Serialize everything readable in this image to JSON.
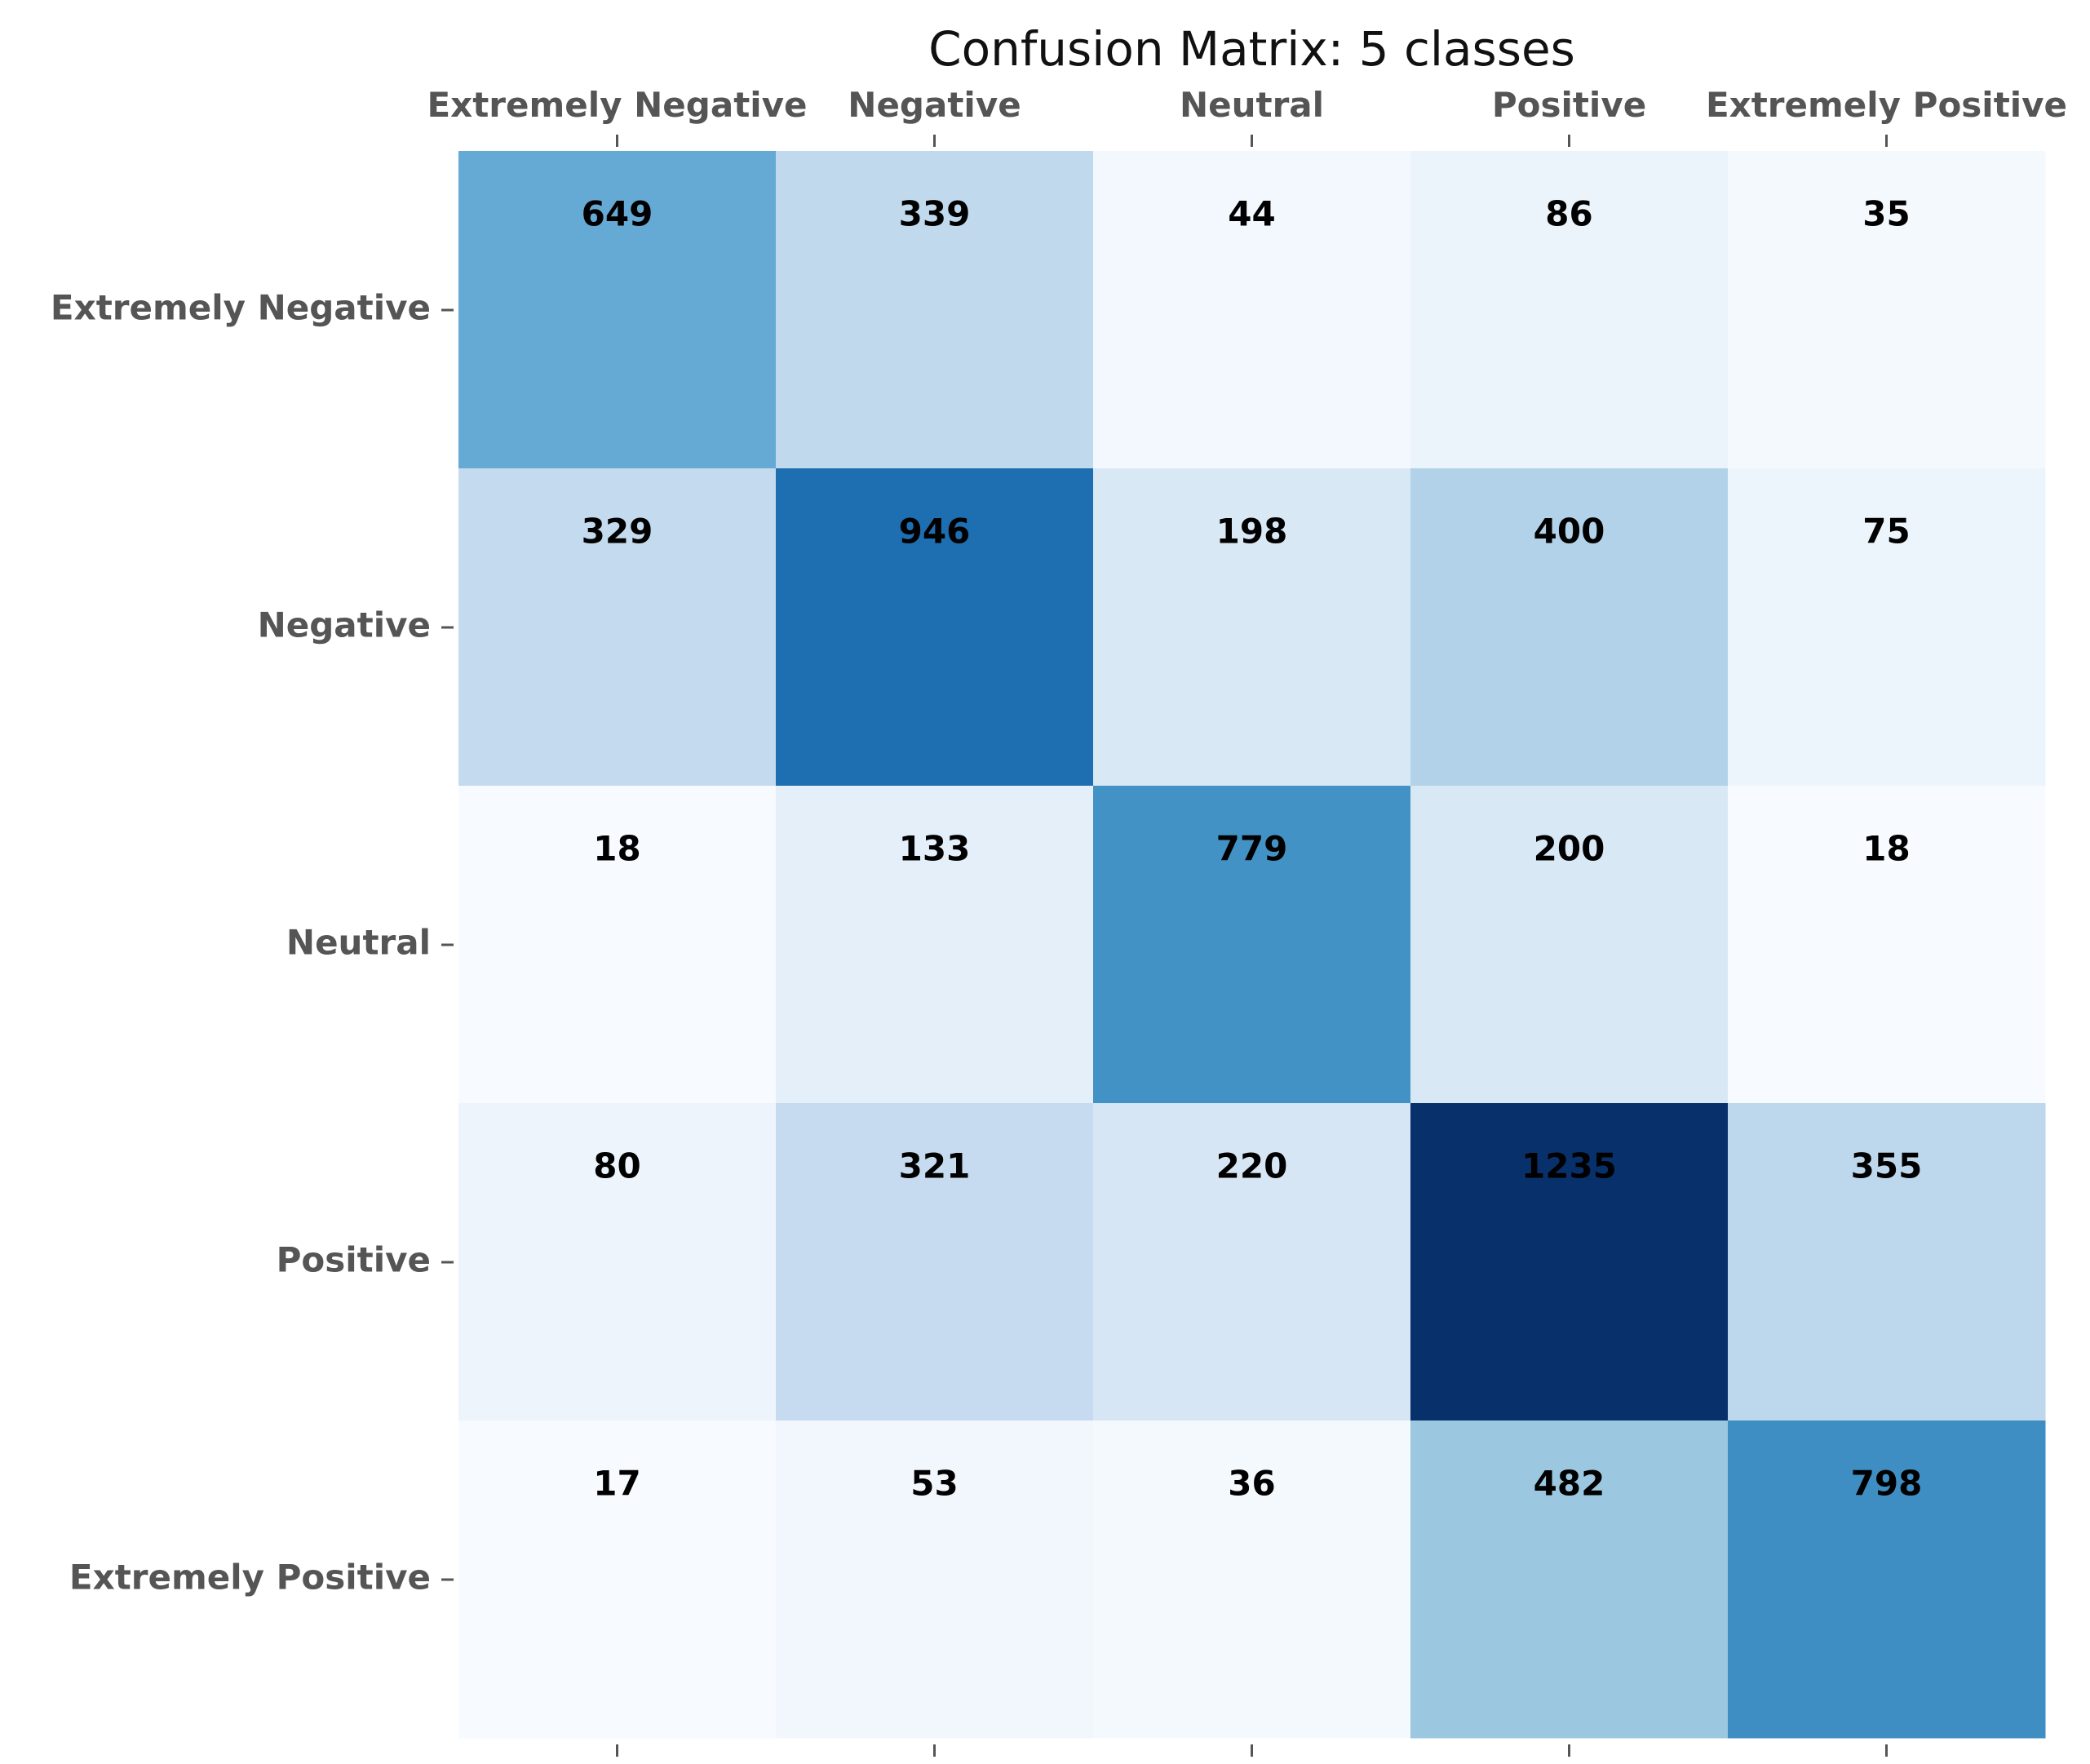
{
  "chart_data": {
    "type": "heatmap",
    "title": "Confusion Matrix: 5 classes",
    "xlabel": "",
    "ylabel": "",
    "x_categories": [
      "Extremely Negative",
      "Negative",
      "Neutral",
      "Positive",
      "Extremely Positive"
    ],
    "y_categories": [
      "Extremely Negative",
      "Negative",
      "Neutral",
      "Positive",
      "Extremely Positive"
    ],
    "values": [
      [
        649,
        339,
        44,
        86,
        35
      ],
      [
        329,
        946,
        198,
        400,
        75
      ],
      [
        18,
        133,
        779,
        200,
        18
      ],
      [
        80,
        321,
        220,
        1235,
        355
      ],
      [
        17,
        53,
        36,
        482,
        798
      ]
    ],
    "x_axis_position": "top",
    "colormap": "Blues",
    "grid": false,
    "legend": "none"
  }
}
